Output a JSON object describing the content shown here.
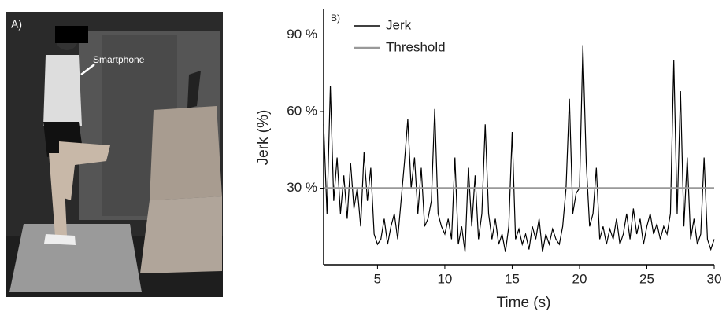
{
  "photo": {
    "label": "A)",
    "annotation": "Smartphone"
  },
  "chart_data": {
    "type": "line",
    "panel_label": "B)",
    "x_label": "Time (s)",
    "y_label": "Jerk (%)",
    "xlim": [
      1,
      30
    ],
    "xticks": [
      5,
      10,
      15,
      20,
      25,
      30
    ],
    "ylim": [
      0,
      100
    ],
    "yticks": [
      {
        "value": 30,
        "label": "30 %"
      },
      {
        "value": 60,
        "label": "60 %"
      },
      {
        "value": 90,
        "label": "90 %"
      }
    ],
    "legend": "upper left",
    "series": [
      {
        "name": "Jerk",
        "color": "#000000",
        "x": [
          1,
          1.25,
          1.5,
          1.75,
          2,
          2.25,
          2.5,
          2.75,
          3,
          3.25,
          3.5,
          3.75,
          4,
          4.25,
          4.5,
          4.75,
          5,
          5.25,
          5.5,
          5.75,
          6,
          6.25,
          6.5,
          6.75,
          7,
          7.25,
          7.5,
          7.75,
          8,
          8.25,
          8.5,
          8.75,
          9,
          9.25,
          9.5,
          9.75,
          10,
          10.25,
          10.5,
          10.75,
          11,
          11.25,
          11.5,
          11.75,
          12,
          12.25,
          12.5,
          12.75,
          13,
          13.25,
          13.5,
          13.75,
          14,
          14.25,
          14.5,
          14.75,
          15,
          15.25,
          15.5,
          15.75,
          16,
          16.25,
          16.5,
          16.75,
          17,
          17.25,
          17.5,
          17.75,
          18,
          18.25,
          18.5,
          18.75,
          19,
          19.25,
          19.5,
          19.75,
          20,
          20.25,
          20.5,
          20.75,
          21,
          21.25,
          21.5,
          21.75,
          22,
          22.25,
          22.5,
          22.75,
          23,
          23.25,
          23.5,
          23.75,
          24,
          24.25,
          24.5,
          24.75,
          25,
          25.25,
          25.5,
          25.75,
          26,
          26.25,
          26.5,
          26.75,
          27,
          27.25,
          27.5,
          27.75,
          28,
          28.25,
          28.5,
          28.75,
          29,
          29.25,
          29.5,
          29.75,
          30
        ],
        "values": [
          55,
          20,
          70,
          25,
          42,
          20,
          35,
          18,
          40,
          22,
          30,
          15,
          44,
          25,
          38,
          12,
          8,
          10,
          18,
          8,
          15,
          20,
          10,
          25,
          40,
          57,
          30,
          42,
          20,
          38,
          15,
          18,
          25,
          61,
          20,
          15,
          12,
          18,
          10,
          42,
          8,
          15,
          5,
          38,
          15,
          35,
          10,
          20,
          55,
          20,
          10,
          18,
          8,
          12,
          5,
          15,
          52,
          10,
          14,
          8,
          12,
          6,
          15,
          10,
          18,
          5,
          12,
          8,
          14,
          10,
          8,
          15,
          30,
          65,
          20,
          28,
          30,
          86,
          40,
          15,
          20,
          38,
          10,
          15,
          8,
          14,
          10,
          18,
          8,
          12,
          20,
          10,
          22,
          12,
          18,
          8,
          15,
          20,
          12,
          16,
          10,
          15,
          12,
          20,
          80,
          20,
          68,
          15,
          42,
          10,
          18,
          8,
          12,
          42,
          10,
          6,
          10
        ]
      },
      {
        "name": "Threshold",
        "color": "#999999",
        "x": [
          1,
          30
        ],
        "values": [
          30,
          30
        ]
      }
    ]
  }
}
